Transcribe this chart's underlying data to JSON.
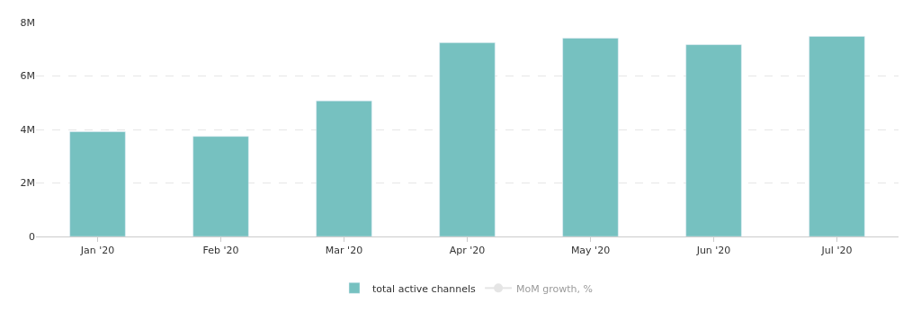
{
  "chart_data": {
    "type": "bar",
    "categories": [
      "Jan '20",
      "Feb '20",
      "Mar '20",
      "Apr '20",
      "May '20",
      "Jun '20",
      "Jul '20"
    ],
    "series": [
      {
        "name": "total active channels",
        "color": "#76c1c0",
        "values": [
          3.92,
          3.74,
          5.07,
          7.24,
          7.41,
          7.17,
          7.48
        ]
      },
      {
        "name": "MoM growth, %",
        "type": "line",
        "color": "#cccccc",
        "values": [
          null,
          null,
          null,
          null,
          null,
          null,
          null
        ]
      }
    ],
    "ylim": [
      0,
      8
    ],
    "yticks": [
      0,
      {
        "value": 2,
        "label": "2M"
      },
      {
        "value": 4,
        "label": "4M"
      },
      {
        "value": 6,
        "label": "6M"
      },
      {
        "value": 8,
        "label": "8M"
      }
    ],
    "grid": "y",
    "legend": "bottom"
  }
}
